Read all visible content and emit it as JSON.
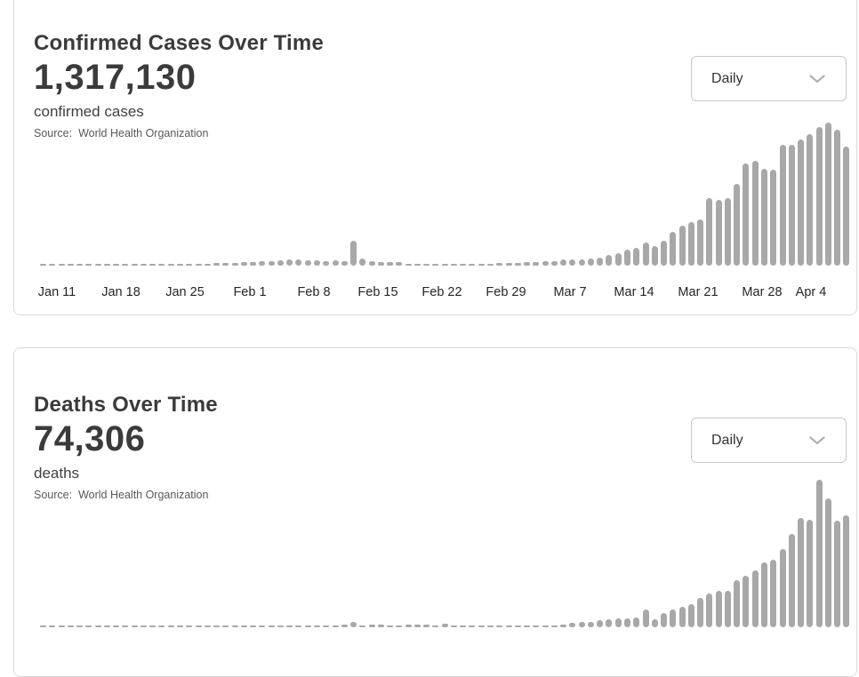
{
  "colors": {
    "bar": "#a8a8a8",
    "card_border": "#d9d9d9",
    "title_text": "#3b3b3b",
    "source_text": "#595959",
    "axis_text": "#262626",
    "dropdown_border": "#c8c8c8"
  },
  "cards": [
    {
      "title": "Confirmed Cases Over Time",
      "metric_value": "1,317,130",
      "metric_label": "confirmed cases",
      "source_prefix": "Source:",
      "source_name": "World Health Organization",
      "granularity_dropdown": {
        "selected": "Daily",
        "icon": "chevron-down-icon"
      }
    },
    {
      "title": "Deaths Over Time",
      "metric_value": "74,306",
      "metric_label": "deaths",
      "source_prefix": "Source:",
      "source_name": "World Health Organization",
      "granularity_dropdown": {
        "selected": "Daily",
        "icon": "chevron-down-icon"
      }
    }
  ],
  "chart_data": [
    {
      "type": "bar",
      "title": "Confirmed Cases Over Time",
      "series_name": "Daily new confirmed cases",
      "ylabel": "",
      "xlabel": "",
      "grid": false,
      "legend": "none",
      "bar_color": "#a8a8a8",
      "ylim": [
        0,
        86108
      ],
      "x_tick_labels": [
        "Jan 11",
        "Jan 18",
        "Jan 25",
        "Feb 1",
        "Feb 8",
        "Feb 15",
        "Feb 22",
        "Feb 29",
        "Mar 7",
        "Mar 14",
        "Mar 21",
        "Mar 28",
        "Apr 4"
      ],
      "x": [
        "Jan 10",
        "Jan 11",
        "Jan 12",
        "Jan 13",
        "Jan 14",
        "Jan 15",
        "Jan 16",
        "Jan 17",
        "Jan 18",
        "Jan 19",
        "Jan 20",
        "Jan 21",
        "Jan 22",
        "Jan 23",
        "Jan 24",
        "Jan 25",
        "Jan 26",
        "Jan 27",
        "Jan 28",
        "Jan 29",
        "Jan 30",
        "Jan 31",
        "Feb 1",
        "Feb 2",
        "Feb 3",
        "Feb 4",
        "Feb 5",
        "Feb 6",
        "Feb 7",
        "Feb 8",
        "Feb 9",
        "Feb 10",
        "Feb 11",
        "Feb 12",
        "Feb 13",
        "Feb 14",
        "Feb 15",
        "Feb 16",
        "Feb 17",
        "Feb 18",
        "Feb 19",
        "Feb 20",
        "Feb 21",
        "Feb 22",
        "Feb 23",
        "Feb 24",
        "Feb 25",
        "Feb 26",
        "Feb 27",
        "Feb 28",
        "Feb 29",
        "Mar 1",
        "Mar 2",
        "Mar 3",
        "Mar 4",
        "Mar 5",
        "Mar 6",
        "Mar 7",
        "Mar 8",
        "Mar 9",
        "Mar 10",
        "Mar 11",
        "Mar 12",
        "Mar 13",
        "Mar 14",
        "Mar 15",
        "Mar 16",
        "Mar 17",
        "Mar 18",
        "Mar 19",
        "Mar 20",
        "Mar 21",
        "Mar 22",
        "Mar 23",
        "Mar 24",
        "Mar 25",
        "Mar 26",
        "Mar 27",
        "Mar 28",
        "Mar 29",
        "Mar 30",
        "Mar 31",
        "Apr 1",
        "Apr 2",
        "Apr 3",
        "Apr 4",
        "Apr 5",
        "Apr 6",
        "Apr 7"
      ],
      "values": [
        0,
        0,
        41,
        1,
        0,
        0,
        0,
        3,
        17,
        59,
        77,
        85,
        155,
        267,
        272,
        286,
        471,
        698,
        785,
        1781,
        1477,
        1755,
        2005,
        2127,
        2617,
        2560,
        3236,
        3925,
        3722,
        3160,
        3418,
        2676,
        3062,
        2560,
        15152,
        4348,
        2676,
        2162,
        2067,
        1995,
        530,
        599,
        887,
        1013,
        650,
        715,
        531,
        871,
        1185,
        1358,
        1753,
        1739,
        1806,
        2103,
        2223,
        2708,
        2870,
        3735,
        3656,
        3993,
        4125,
        4627,
        6703,
        7488,
        9751,
        10982,
        13903,
        11526,
        15123,
        20338,
        24247,
        26069,
        27755,
        40788,
        39827,
        40712,
        49219,
        61575,
        63159,
        58411,
        57610,
        72736,
        72839,
        75917,
        79394,
        83435,
        86108,
        82061,
        71580
      ]
    },
    {
      "type": "bar",
      "title": "Deaths Over Time",
      "series_name": "Daily new deaths",
      "ylabel": "",
      "xlabel": "",
      "grid": false,
      "legend": "none",
      "bar_color": "#a8a8a8",
      "ylim": [
        0,
        6980
      ],
      "x_tick_labels": [],
      "x": [
        "Jan 10",
        "Jan 11",
        "Jan 12",
        "Jan 13",
        "Jan 14",
        "Jan 15",
        "Jan 16",
        "Jan 17",
        "Jan 18",
        "Jan 19",
        "Jan 20",
        "Jan 21",
        "Jan 22",
        "Jan 23",
        "Jan 24",
        "Jan 25",
        "Jan 26",
        "Jan 27",
        "Jan 28",
        "Jan 29",
        "Jan 30",
        "Jan 31",
        "Feb 1",
        "Feb 2",
        "Feb 3",
        "Feb 4",
        "Feb 5",
        "Feb 6",
        "Feb 7",
        "Feb 8",
        "Feb 9",
        "Feb 10",
        "Feb 11",
        "Feb 12",
        "Feb 13",
        "Feb 14",
        "Feb 15",
        "Feb 16",
        "Feb 17",
        "Feb 18",
        "Feb 19",
        "Feb 20",
        "Feb 21",
        "Feb 22",
        "Feb 23",
        "Feb 24",
        "Feb 25",
        "Feb 26",
        "Feb 27",
        "Feb 28",
        "Feb 29",
        "Mar 1",
        "Mar 2",
        "Mar 3",
        "Mar 4",
        "Mar 5",
        "Mar 6",
        "Mar 7",
        "Mar 8",
        "Mar 9",
        "Mar 10",
        "Mar 11",
        "Mar 12",
        "Mar 13",
        "Mar 14",
        "Mar 15",
        "Mar 16",
        "Mar 17",
        "Mar 18",
        "Mar 19",
        "Mar 20",
        "Mar 21",
        "Mar 22",
        "Mar 23",
        "Mar 24",
        "Mar 25",
        "Mar 26",
        "Mar 27",
        "Mar 28",
        "Mar 29",
        "Mar 30",
        "Mar 31",
        "Apr 1",
        "Apr 2",
        "Apr 3",
        "Apr 4",
        "Apr 5",
        "Apr 6",
        "Apr 7"
      ],
      "values": [
        0,
        0,
        0,
        0,
        0,
        0,
        0,
        0,
        0,
        1,
        1,
        2,
        4,
        4,
        8,
        16,
        15,
        24,
        26,
        26,
        38,
        43,
        46,
        45,
        45,
        57,
        64,
        66,
        73,
        73,
        86,
        89,
        97,
        108,
        254,
        13,
        144,
        142,
        106,
        98,
        115,
        118,
        109,
        97,
        150,
        71,
        52,
        29,
        44,
        46,
        79,
        58,
        65,
        72,
        84,
        87,
        99,
        130,
        197,
        265,
        240,
        336,
        365,
        407,
        433,
        475,
        853,
        365,
        685,
        827,
        966,
        1079,
        1386,
        1596,
        1735,
        1735,
        2226,
        2436,
        2675,
        3059,
        3215,
        3700,
        4400,
        5170,
        5100,
        6980,
        6090,
        5040,
        5290
      ]
    }
  ]
}
